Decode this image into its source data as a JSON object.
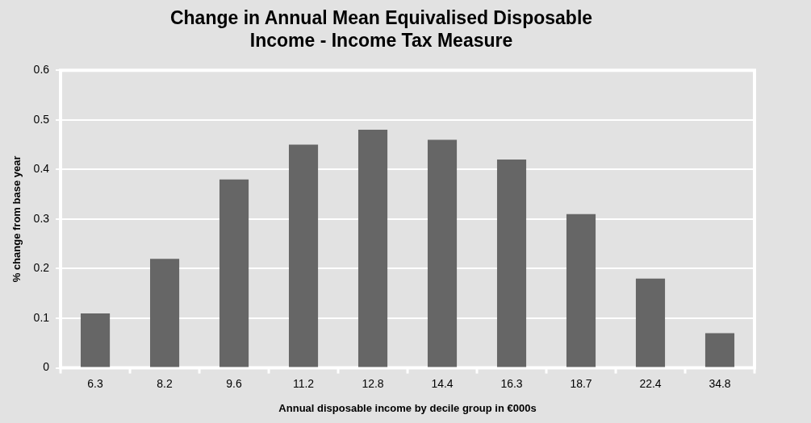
{
  "chart_data": {
    "type": "bar",
    "title": "Change in Annual Mean Equivalised Disposable Income - Income Tax Measure",
    "xlabel": "Annual disposable income by decile group in €000s",
    "ylabel": "% change from base year",
    "categories": [
      "6.3",
      "8.2",
      "9.6",
      "11.2",
      "12.8",
      "14.4",
      "16.3",
      "18.7",
      "22.4",
      "34.8"
    ],
    "values": [
      0.11,
      0.22,
      0.38,
      0.45,
      0.48,
      0.46,
      0.42,
      0.31,
      0.18,
      0.07
    ],
    "color": "#666666",
    "ylim": [
      0,
      0.6
    ],
    "yticks": [
      0,
      0.1,
      0.2,
      0.3,
      0.4,
      0.5,
      0.6
    ],
    "grid": "y",
    "legend": false
  }
}
